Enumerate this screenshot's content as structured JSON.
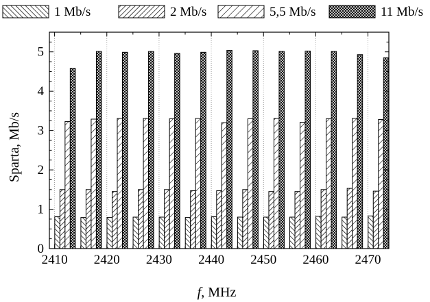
{
  "chart_data": {
    "type": "bar",
    "xlabel_italic": "f",
    "xlabel_rest": ", MHz",
    "ylabel": "Sparta, Mb/s",
    "ylim": [
      0,
      5.5
    ],
    "xlim": [
      2409,
      2474
    ],
    "x_ticks": [
      "2410",
      "2420",
      "2430",
      "2440",
      "2450",
      "2460",
      "2470"
    ],
    "y_ticks": [
      "0",
      "1",
      "2",
      "3",
      "4",
      "5"
    ],
    "grid": "vertical dotted",
    "legend_position": "top",
    "categories": [
      2412,
      2417,
      2422,
      2427,
      2432,
      2437,
      2442,
      2447,
      2452,
      2457,
      2462,
      2467,
      2472
    ],
    "series": [
      {
        "name": "1 Mb/s",
        "pattern": "hatch-fwd",
        "values": [
          0.81,
          0.79,
          0.79,
          0.8,
          0.8,
          0.79,
          0.81,
          0.8,
          0.8,
          0.8,
          0.82,
          0.8,
          0.83
        ]
      },
      {
        "name": "2 Mb/s",
        "pattern": "hatch-back",
        "values": [
          1.5,
          1.5,
          1.45,
          1.5,
          1.5,
          1.47,
          1.47,
          1.5,
          1.45,
          1.45,
          1.5,
          1.53,
          1.46
        ]
      },
      {
        "name": "5,5 Mb/s",
        "pattern": "hatch-back-wide",
        "values": [
          3.23,
          3.29,
          3.31,
          3.31,
          3.3,
          3.31,
          3.2,
          3.3,
          3.31,
          3.21,
          3.3,
          3.31,
          3.28
        ]
      },
      {
        "name": "11 Mb/s",
        "pattern": "crosshatch",
        "values": [
          4.58,
          5.01,
          4.99,
          5.01,
          4.96,
          4.99,
          5.04,
          5.03,
          5.01,
          5.02,
          5.01,
          4.93,
          4.85
        ]
      }
    ]
  }
}
